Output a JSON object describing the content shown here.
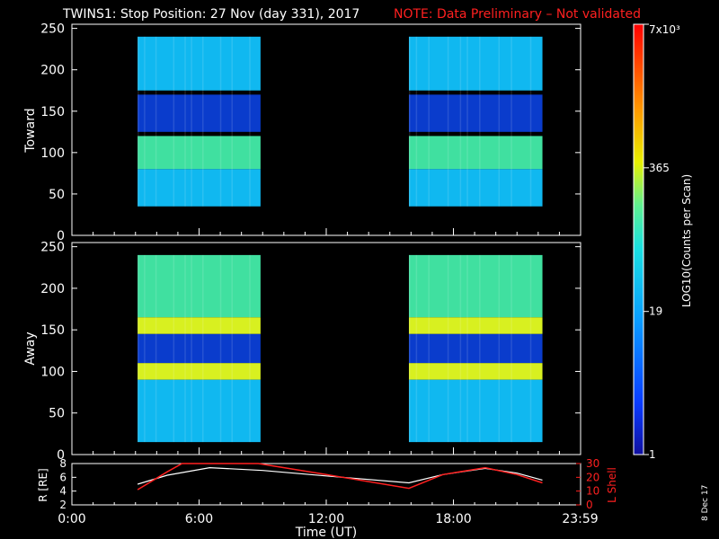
{
  "title": "TWINS1: Stop Position: 27 Nov (day 331), 2017",
  "note": "NOTE: Data Preliminary – Not validated",
  "stamp": "8 Dec 17",
  "colors": {
    "axis": "#ffffff",
    "note": "#ff2020",
    "lshell": "#ff2020",
    "r_line": "#ffffff"
  },
  "chart_data": [
    {
      "type": "heatmap",
      "panel": "toward",
      "ylabel": "Toward",
      "ylim": [
        0,
        255
      ],
      "yticks": [
        0,
        50,
        100,
        150,
        200,
        250
      ],
      "xlim": [
        0,
        24
      ],
      "data_intervals_hours": [
        [
          3.1,
          8.9
        ],
        [
          15.9,
          22.2
        ]
      ],
      "bands": [
        {
          "y": [
            240,
            175
          ],
          "level": "medium-cyan"
        },
        {
          "y": [
            170,
            125
          ],
          "level": "low-blue"
        },
        {
          "y": [
            120,
            80
          ],
          "level": "high-green"
        },
        {
          "y": [
            80,
            35
          ],
          "level": "medium-cyan"
        }
      ]
    },
    {
      "type": "heatmap",
      "panel": "away",
      "ylabel": "Away",
      "ylim": [
        0,
        255
      ],
      "yticks": [
        0,
        50,
        100,
        150,
        200,
        250
      ],
      "xlim": [
        0,
        24
      ],
      "data_intervals_hours": [
        [
          3.1,
          8.9
        ],
        [
          15.9,
          22.2
        ]
      ],
      "bands": [
        {
          "y": [
            240,
            165
          ],
          "level": "high-green"
        },
        {
          "y": [
            165,
            145
          ],
          "level": "peak-yellow"
        },
        {
          "y": [
            145,
            110
          ],
          "level": "low-blue"
        },
        {
          "y": [
            110,
            90
          ],
          "level": "peak-yellow"
        },
        {
          "y": [
            90,
            15
          ],
          "level": "medium-cyan"
        }
      ]
    },
    {
      "type": "line",
      "panel": "orbit",
      "ylabel": "R [RE]",
      "ylabel_right": "L Shell",
      "ylim": [
        2,
        8
      ],
      "yticks": [
        2,
        4,
        6,
        8
      ],
      "ylim_right": [
        0,
        30
      ],
      "yticks_right": [
        0,
        10,
        20,
        30
      ],
      "xlabel": "Time (UT)",
      "xticks": [
        "0:00",
        "6:00",
        "12:00",
        "18:00",
        "23:59"
      ],
      "xtick_values": [
        0,
        6,
        12,
        18,
        23.98
      ],
      "series": [
        {
          "x": [
            3.1,
            4.5,
            6.5,
            9.0,
            12.0,
            15.9,
            17.5,
            19.5,
            21.0,
            22.2
          ],
          "y": [
            5.0,
            6.3,
            7.4,
            7.0,
            6.2,
            5.2,
            6.4,
            7.3,
            6.6,
            5.6
          ]
        },
        {
          "x": [
            3.1,
            4.5,
            5.2,
            8.8,
            12.0,
            15.9,
            17.5,
            19.5,
            21.0,
            22.2
          ],
          "y": [
            11,
            24,
            31,
            31,
            22,
            12,
            22,
            27,
            22,
            16
          ]
        }
      ]
    }
  ],
  "colorbar": {
    "label": "LOG10(Counts per Scan)",
    "ticks": [
      "1",
      "19",
      "365",
      "7x10³"
    ]
  }
}
